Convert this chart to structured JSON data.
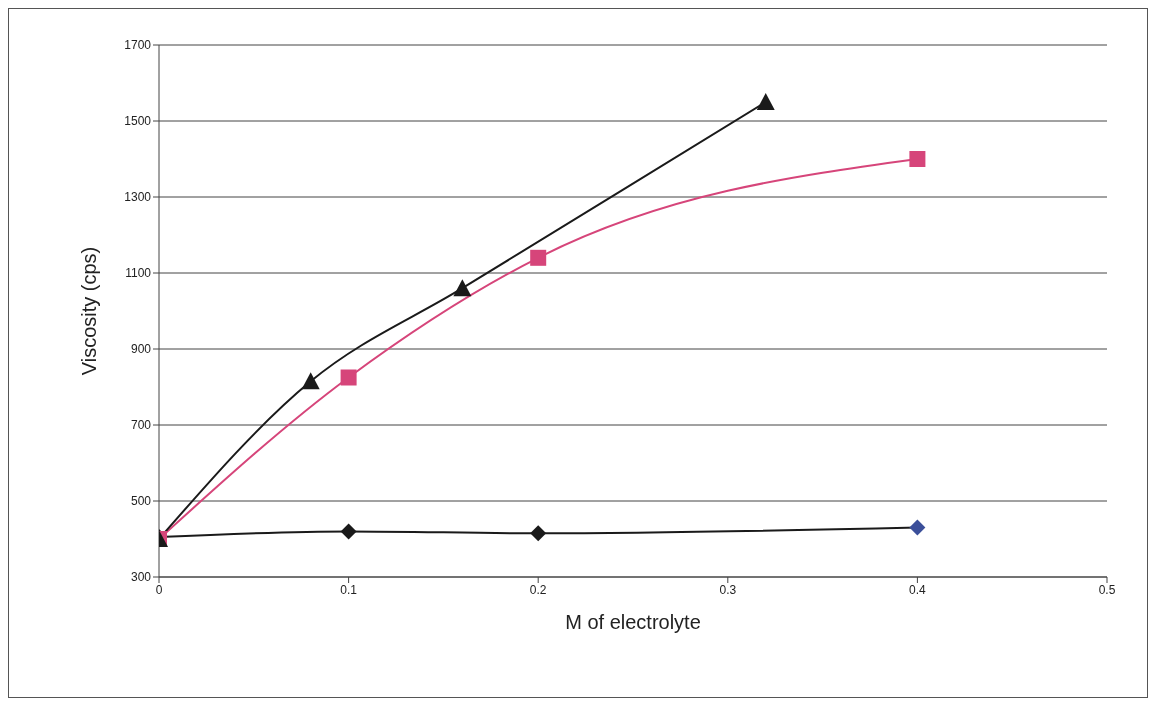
{
  "chart_data": {
    "type": "line",
    "xlabel": "M of electrolyte",
    "ylabel": "Viscosity (cps)",
    "xlim": [
      0,
      0.5
    ],
    "xticks": [
      0,
      0.1,
      0.2,
      0.3,
      0.4,
      0.5
    ],
    "ylim": [
      300,
      1700
    ],
    "yticks": [
      300,
      500,
      700,
      900,
      1100,
      1300,
      1500,
      1700
    ],
    "grid": "y",
    "series": [
      {
        "color": "#1a1a1a",
        "marker": "diamond",
        "x": [
          0,
          0.1,
          0.2,
          0.4
        ],
        "values": [
          405,
          420,
          415,
          430
        ],
        "colors": [
          "#1a1a1a",
          "#1a1a1a",
          "#1a1a1a",
          "#3b4f9a"
        ]
      },
      {
        "color": "#d6457a",
        "marker": "square",
        "x": [
          0,
          0.1,
          0.2,
          0.4
        ],
        "values": [
          400,
          825,
          1140,
          1400
        ]
      },
      {
        "color": "#1a1a1a",
        "marker": "triangle",
        "x": [
          0,
          0.08,
          0.16,
          0.32
        ],
        "values": [
          400,
          815,
          1060,
          1550
        ]
      }
    ]
  }
}
